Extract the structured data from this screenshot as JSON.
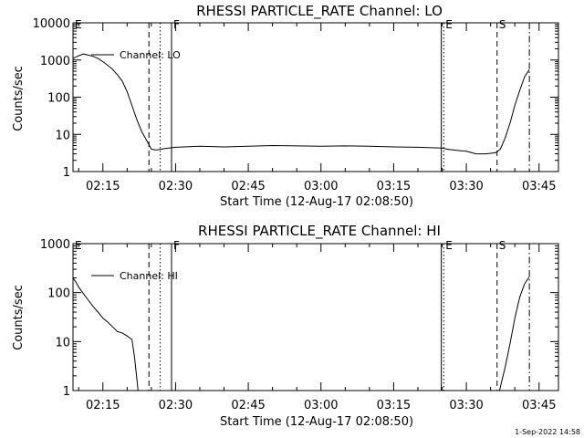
{
  "footer": {
    "date": "1-Sep-2022 14:58"
  },
  "chart_data": [
    {
      "type": "line",
      "title": "RHESSI PARTICLE_RATE Channel: LO",
      "xlabel": "Start Time (12-Aug-17 02:08:50)",
      "ylabel": "Counts/sec",
      "y_scale": "log",
      "ylim": [
        1,
        10000
      ],
      "xlim": [
        "02:08:50",
        "03:49:00"
      ],
      "y_ticks": [
        "1",
        "10",
        "100",
        "1000",
        "10000"
      ],
      "x_ticks": [
        "02:15",
        "02:30",
        "02:45",
        "03:00",
        "03:15",
        "03:30",
        "03:45"
      ],
      "legend": {
        "position": "top-left",
        "entries": [
          "Channel: LO"
        ]
      },
      "series": [
        {
          "name": "Channel: LO",
          "x": [
            "02:08:50",
            "02:10:00",
            "02:11:00",
            "02:12:00",
            "02:13:00",
            "02:14:00",
            "02:15:00",
            "02:16:00",
            "02:17:00",
            "02:18:00",
            "02:19:00",
            "02:20:00",
            "02:21:00",
            "02:22:00",
            "02:23:00",
            "02:24:00",
            "02:25:00",
            "02:26:00",
            "02:27:00",
            "02:28:00",
            "02:30:00",
            "02:35:00",
            "02:40:00",
            "02:45:00",
            "02:50:00",
            "02:55:00",
            "03:00:00",
            "03:05:00",
            "03:10:00",
            "03:15:00",
            "03:20:00",
            "03:25:00",
            "03:26:00",
            "03:28:00",
            "03:30:00",
            "03:32:00",
            "03:34:00",
            "03:36:00",
            "03:37:00",
            "03:38:00",
            "03:39:00",
            "03:40:00",
            "03:41:00",
            "03:42:00",
            "03:43:00"
          ],
          "y": [
            1100,
            1300,
            1450,
            1350,
            1250,
            1100,
            900,
            720,
            560,
            400,
            270,
            140,
            60,
            25,
            12,
            7,
            4,
            3.8,
            4,
            4.2,
            4.5,
            4.8,
            4.6,
            4.8,
            5,
            4.9,
            4.8,
            4.9,
            4.8,
            4.6,
            4.5,
            4.3,
            4,
            3.7,
            3.5,
            3,
            3,
            3.2,
            4,
            8,
            20,
            60,
            150,
            350,
            550
          ]
        }
      ],
      "annotations": [
        {
          "label": "E",
          "time": "02:08:50",
          "style": "none"
        },
        {
          "label": "",
          "time": "02:24:30",
          "style": "dashed"
        },
        {
          "label": "",
          "time": "02:26:50",
          "style": "dotted"
        },
        {
          "label": "F",
          "time": "02:29:10",
          "style": "solid"
        },
        {
          "label": "",
          "time": "03:24:50",
          "style": "solid"
        },
        {
          "label": "E",
          "time": "03:25:20",
          "style": "dotted"
        },
        {
          "label": "S",
          "time": "03:36:20",
          "style": "dashed"
        },
        {
          "label": "",
          "time": "03:43:00",
          "style": "dashdot"
        }
      ]
    },
    {
      "type": "line",
      "title": "RHESSI PARTICLE_RATE Channel: HI",
      "xlabel": "Start Time (12-Aug-17 02:08:50)",
      "ylabel": "Counts/sec",
      "y_scale": "log",
      "ylim": [
        1,
        1000
      ],
      "xlim": [
        "02:08:50",
        "03:49:00"
      ],
      "y_ticks": [
        "1",
        "10",
        "100",
        "1000"
      ],
      "x_ticks": [
        "02:15",
        "02:30",
        "02:45",
        "03:00",
        "03:15",
        "03:30",
        "03:45"
      ],
      "legend": {
        "position": "top-left",
        "entries": [
          "Channel: HI"
        ]
      },
      "series": [
        {
          "name": "Channel: HI",
          "x": [
            "02:08:50",
            "02:09:30",
            "02:10:00",
            "02:11:00",
            "02:12:00",
            "02:13:00",
            "02:14:00",
            "02:15:00",
            "02:16:00",
            "02:17:00",
            "02:18:00",
            "02:19:00",
            "02:20:00",
            "02:21:00",
            "02:21:30",
            "02:22:00",
            "02:22:15",
            "03:36:50",
            "03:38:00",
            "03:39:00",
            "03:40:00",
            "03:41:00",
            "03:42:00",
            "03:43:00"
          ],
          "y": [
            200,
            160,
            130,
            95,
            70,
            52,
            40,
            30,
            25,
            20,
            16,
            15,
            13,
            11,
            5,
            1.8,
            1,
            1,
            3,
            9,
            30,
            80,
            150,
            210
          ]
        }
      ],
      "annotations": [
        {
          "label": "E",
          "time": "02:08:50",
          "style": "none"
        },
        {
          "label": "",
          "time": "02:24:30",
          "style": "dashed"
        },
        {
          "label": "",
          "time": "02:26:50",
          "style": "dotted"
        },
        {
          "label": "F",
          "time": "02:29:10",
          "style": "solid"
        },
        {
          "label": "",
          "time": "03:24:50",
          "style": "solid"
        },
        {
          "label": "E",
          "time": "03:25:20",
          "style": "dotted"
        },
        {
          "label": "S",
          "time": "03:36:20",
          "style": "dashed"
        },
        {
          "label": "",
          "time": "03:43:00",
          "style": "dashdot"
        }
      ]
    }
  ]
}
